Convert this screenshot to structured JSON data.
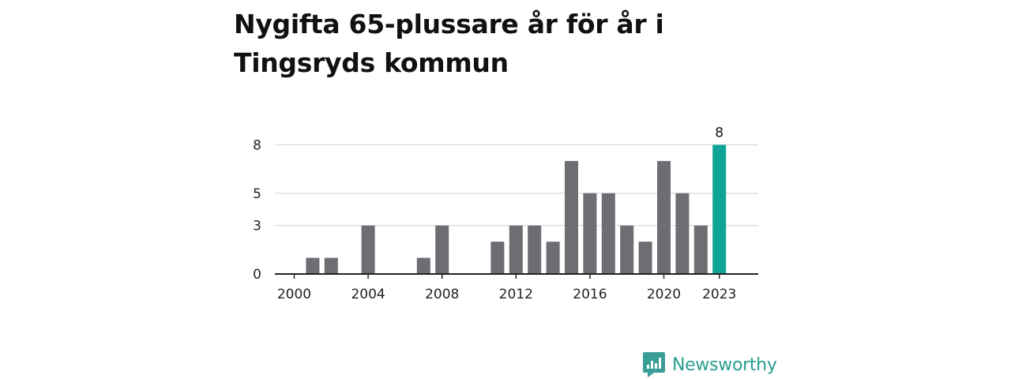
{
  "title": "Nygifta 65-plussare år för år i Tingsryds kommun",
  "brand": {
    "name": "Newsworthy",
    "icon": "newsworthy-logo-icon",
    "color": "#3a9e96"
  },
  "colors": {
    "bar": "#6e6d73",
    "highlight": "#0ea597",
    "grid": "#d9d9d9",
    "axis": "#222222"
  },
  "chart_data": {
    "type": "bar",
    "title": "Nygifta 65-plussare år för år i Tingsryds kommun",
    "xlabel": "",
    "ylabel": "",
    "categories": [
      2000,
      2001,
      2002,
      2003,
      2004,
      2005,
      2006,
      2007,
      2008,
      2009,
      2010,
      2011,
      2012,
      2013,
      2014,
      2015,
      2016,
      2017,
      2018,
      2019,
      2020,
      2021,
      2022,
      2023
    ],
    "values": [
      0,
      1,
      1,
      0,
      3,
      0,
      0,
      1,
      3,
      0,
      0,
      2,
      3,
      3,
      2,
      7,
      5,
      5,
      3,
      2,
      7,
      5,
      3,
      8
    ],
    "highlight_index": 23,
    "annotation": "8",
    "yticks": [
      0,
      3,
      5,
      8
    ],
    "ytick_labels": [
      "0",
      "3",
      "5",
      "8"
    ],
    "xticks": [
      2000,
      2004,
      2008,
      2012,
      2016,
      2020,
      2023
    ],
    "xtick_labels": [
      "2000",
      "2004",
      "2008",
      "2012",
      "2016",
      "2020",
      "2023"
    ],
    "ylim": [
      0,
      8
    ],
    "grid": true
  }
}
